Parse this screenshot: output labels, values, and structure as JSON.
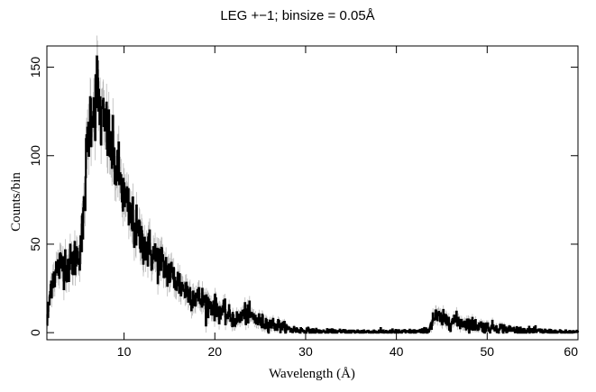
{
  "chart_data": {
    "type": "line",
    "title": "LEG +−1; binsize = 0.05Å",
    "xlabel": "Wavelength (Å)",
    "ylabel": "Counts/bin",
    "xlim": [
      1.5,
      60
    ],
    "ylim": [
      -4,
      162
    ],
    "x_ticks": [
      10,
      20,
      30,
      40,
      50,
      60
    ],
    "y_ticks": [
      0,
      50,
      100,
      150
    ],
    "x_tick_labels": [
      "10",
      "20",
      "30",
      "40",
      "50",
      "60"
    ],
    "y_tick_labels": [
      "0",
      "50",
      "100",
      "150"
    ],
    "grid": false,
    "colors": {
      "data": "#000000",
      "error_bars": "#b8b8b8"
    },
    "series": [
      {
        "x": [
          1.5,
          2.0,
          2.5,
          3.0,
          3.5,
          4.0,
          4.5,
          5.0,
          5.5,
          5.8,
          6.0,
          6.3,
          6.5,
          6.8,
          7.0,
          7.3,
          7.5,
          8.0,
          8.5,
          9.0,
          9.5,
          10.0,
          10.5,
          11.0,
          11.5,
          12.0,
          12.5,
          13.0,
          13.5,
          14.0,
          14.5,
          15.0,
          16.0,
          17.0,
          18.0,
          19.0,
          20.0,
          21.0,
          22.0,
          22.5,
          23.0,
          23.5,
          24.0,
          25.0,
          26.0,
          27.0,
          28.0,
          29.0,
          30.0,
          32.0,
          35.0,
          38.0,
          40.0,
          42.0,
          43.5,
          43.8,
          44.0,
          44.5,
          45.0,
          46.0,
          47.0,
          48.0,
          49.0,
          50.0,
          51.0,
          52.0,
          53.0,
          55.0,
          57.0,
          58.0,
          60.0
        ],
        "y": [
          5,
          30,
          35,
          38,
          40,
          38,
          42,
          45,
          60,
          95,
          110,
          125,
          128,
          130,
          140,
          125,
          120,
          115,
          105,
          95,
          88,
          75,
          68,
          62,
          55,
          52,
          48,
          45,
          42,
          40,
          37,
          34,
          28,
          23,
          20,
          17,
          14,
          11,
          8,
          7,
          10,
          11,
          9,
          6,
          5,
          4,
          2,
          1.5,
          1,
          0.5,
          0.5,
          0.5,
          0.5,
          0.5,
          1,
          5,
          8,
          9,
          7,
          7,
          6,
          5,
          4,
          3,
          3,
          2,
          1.5,
          1,
          0.5,
          0.3,
          0.3
        ]
      }
    ]
  }
}
